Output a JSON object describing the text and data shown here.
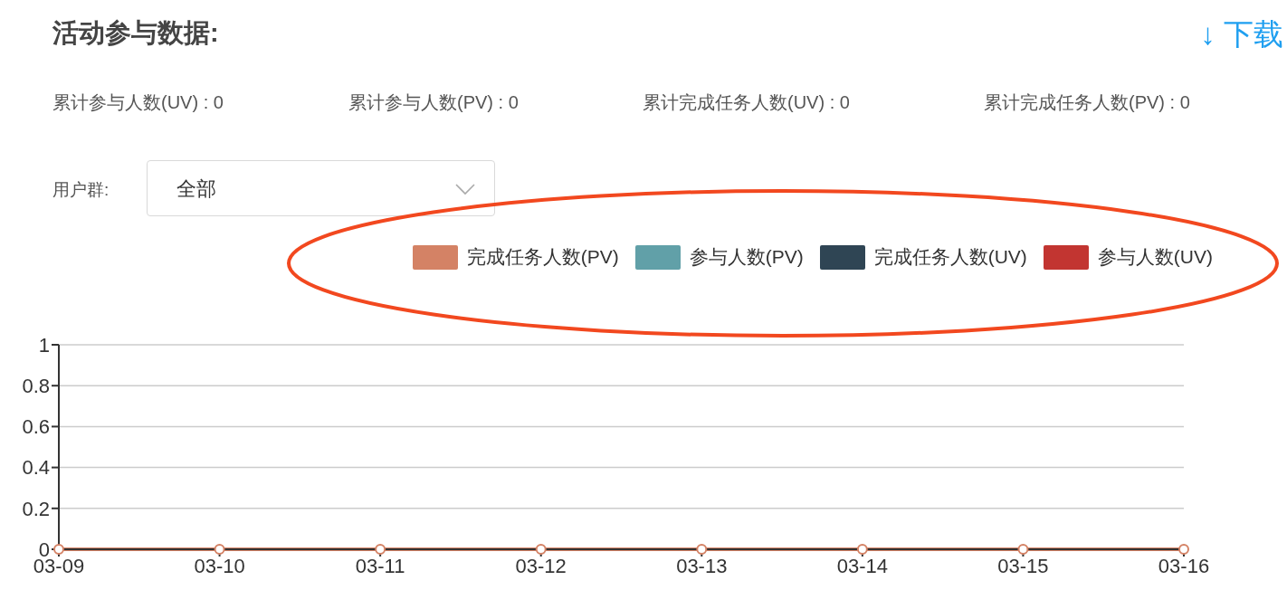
{
  "chart_data": {
    "type": "line",
    "title": "活动参与数据:",
    "annotations": [
      "累计参与人数(UV) : 0",
      "累计参与人数(PV) : 0",
      "累计完成任务人数(UV) : 0",
      "累计完成任务人数(PV) : 0",
      "用户群:",
      "全部",
      "↓ 下载"
    ],
    "categories": [
      "03-09",
      "03-10",
      "03-11",
      "03-12",
      "03-13",
      "03-14",
      "03-15",
      "03-16"
    ],
    "series": [
      {
        "name": "完成任务人数(PV)",
        "color": "#d48265",
        "values": [
          0,
          0,
          0,
          0,
          0,
          0,
          0,
          0
        ]
      },
      {
        "name": "参与人数(PV)",
        "color": "#61a0a8",
        "values": [
          null,
          null,
          null,
          null,
          null,
          null,
          null,
          null
        ]
      },
      {
        "name": "完成任务人数(UV)",
        "color": "#2f4554",
        "values": [
          null,
          null,
          null,
          null,
          null,
          null,
          null,
          null
        ]
      },
      {
        "name": "参与人数(UV)",
        "color": "#c23531",
        "values": [
          null,
          null,
          null,
          null,
          null,
          null,
          null,
          null
        ]
      }
    ],
    "ylim": [
      0,
      1
    ],
    "yticks": [
      0,
      0.2,
      0.4,
      0.6,
      0.8,
      1
    ],
    "grid": "y",
    "legend": "top right",
    "marker": "circle",
    "line_style": "solid"
  }
}
